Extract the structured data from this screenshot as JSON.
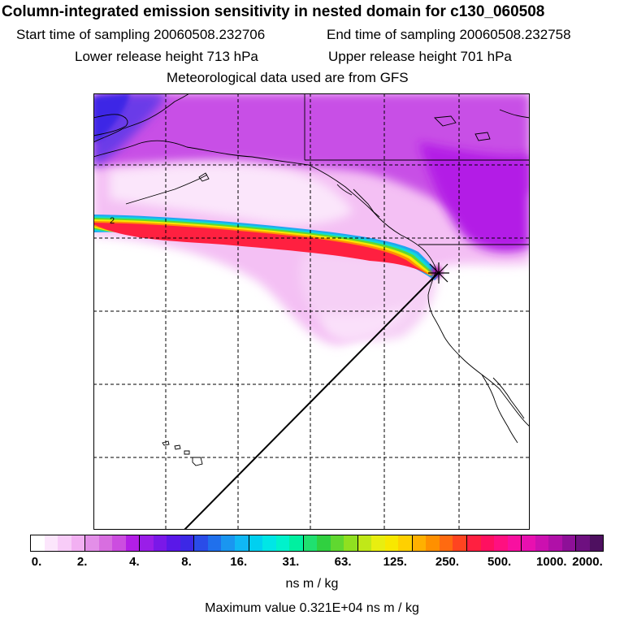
{
  "header": {
    "title": "Column-integrated emission sensitivity in nested domain for c130_060508",
    "start_label": "Start time of sampling 20060508.232706",
    "end_label": "End time of sampling 20060508.232758",
    "lower_label": "Lower release height  713 hPa",
    "upper_label": "Upper release height  701 hPa",
    "met_label": "Meteorological data used are from GFS"
  },
  "map": {
    "contour_label": "2",
    "release_marker": "release-point-cross"
  },
  "colorbar": {
    "unit": "ns m / kg",
    "ticks": [
      "0.",
      "2.",
      "4.",
      "8.",
      "16.",
      "31.",
      "63.",
      "125.",
      "250.",
      "500.",
      "1000.",
      "2000."
    ],
    "colors": [
      "#ffffff",
      "#fce6fc",
      "#f8ccf8",
      "#f2b0f2",
      "#e38fe8",
      "#d86ee0",
      "#cc4de0",
      "#b31ee6",
      "#9a1ee8",
      "#7a18e8",
      "#5a18e8",
      "#3c28e6",
      "#2a4ce8",
      "#2070ec",
      "#1a96f0",
      "#10b8f4",
      "#00d0f0",
      "#00e6e6",
      "#00f2cc",
      "#00f0a0",
      "#20e070",
      "#30d040",
      "#60d830",
      "#90e020",
      "#c0e818",
      "#e8ee10",
      "#f8e800",
      "#ffd000",
      "#ffb000",
      "#ff9000",
      "#ff6a10",
      "#ff4420",
      "#ff2040",
      "#ff1060",
      "#ff1080",
      "#f810a0",
      "#e810b0",
      "#cc10b0",
      "#b010a8",
      "#8e1098",
      "#6e1080",
      "#4e1060"
    ]
  },
  "footer": {
    "max_label": "Maximum value  0.321E+04 ns m / kg"
  }
}
